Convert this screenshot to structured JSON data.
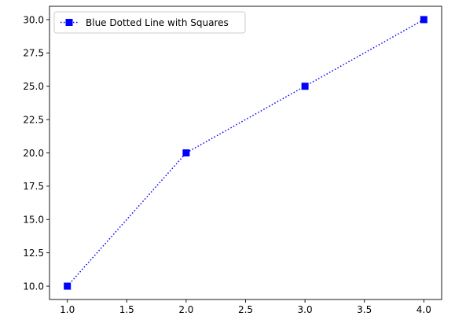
{
  "chart_data": {
    "type": "line",
    "title": "",
    "xlabel": "",
    "ylabel": "",
    "x": [
      1,
      2,
      3,
      4
    ],
    "series": [
      {
        "name": "Blue Dotted Line with Squares",
        "values": [
          10,
          20,
          25,
          30
        ],
        "color": "#0000ff",
        "line_style": "dotted",
        "marker": "square"
      }
    ],
    "xlim": [
      0.85,
      4.15
    ],
    "ylim": [
      9.0,
      31.0
    ],
    "x_ticks": [
      "1.0",
      "1.5",
      "2.0",
      "2.5",
      "3.0",
      "3.5",
      "4.0"
    ],
    "y_ticks": [
      "10.0",
      "12.5",
      "15.0",
      "17.5",
      "20.0",
      "22.5",
      "25.0",
      "27.5",
      "30.0"
    ],
    "grid": false,
    "legend_position": "top-left"
  }
}
